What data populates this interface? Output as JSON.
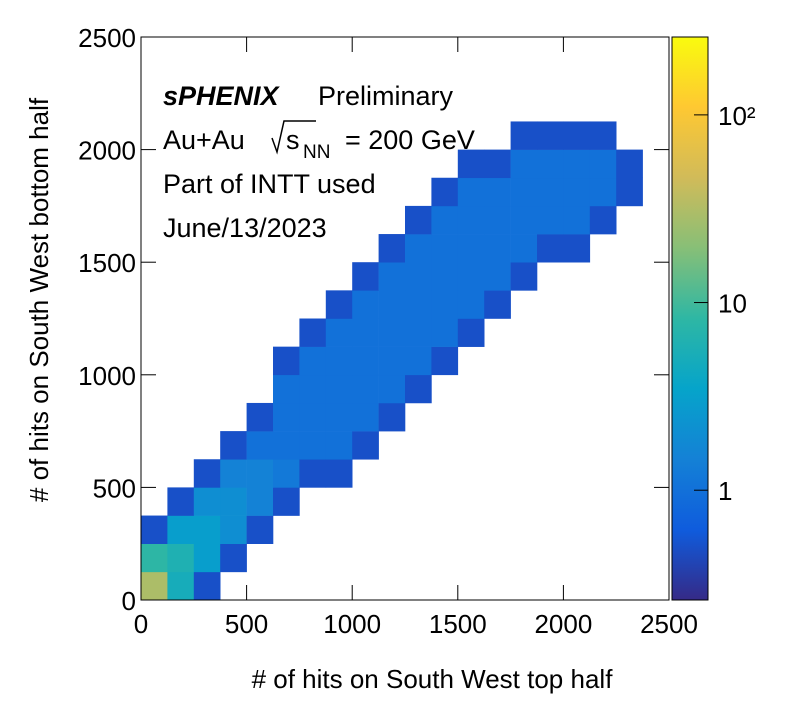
{
  "chart_data": {
    "type": "heatmap",
    "xlabel": "# of hits on South West top half",
    "ylabel": "# of hits on South West bottom half",
    "annotations": [
      "sPHENIX",
      "Preliminary",
      "Au+Au",
      "s",
      "NN",
      "= 200 GeV",
      "Part of INTT used",
      "June/13/2023"
    ],
    "xlim": [
      0,
      2500
    ],
    "ylim": [
      0,
      2500
    ],
    "xticks": [
      0,
      500,
      1000,
      1500,
      2000,
      2500
    ],
    "yticks": [
      0,
      500,
      1000,
      1500,
      2000,
      2500
    ],
    "zlim": [
      0.26,
      260
    ],
    "zlog": true,
    "zticks": [
      1,
      10,
      {
        "value": 100,
        "label": "10²"
      }
    ],
    "colormap": [
      "#352a87",
      "#0f5cdd",
      "#1481d6",
      "#06a4ca",
      "#2eb7a4",
      "#87bf77",
      "#d1bb59",
      "#fec832",
      "#f9fb0e"
    ],
    "xbins": [
      0,
      125,
      250,
      375,
      500,
      625,
      750,
      875,
      1000,
      1125,
      1250,
      1375,
      1500,
      1625,
      1750,
      1875,
      2000,
      2125,
      2250,
      2375,
      2500
    ],
    "ybins": [
      0,
      125,
      250,
      375,
      500,
      625,
      750,
      875,
      1000,
      1125,
      1250,
      1375,
      1500,
      1625,
      1750,
      1875,
      2000,
      2125,
      2250,
      2375,
      2500
    ],
    "z": [
      [
        30,
        5,
        0.5,
        null,
        null,
        null,
        null,
        null,
        null,
        null,
        null,
        null,
        null,
        null,
        null,
        null,
        null,
        null,
        null,
        null
      ],
      [
        8,
        6,
        3,
        0.5,
        null,
        null,
        null,
        null,
        null,
        null,
        null,
        null,
        null,
        null,
        null,
        null,
        null,
        null,
        null,
        null
      ],
      [
        0.5,
        3,
        3,
        2,
        0.5,
        null,
        null,
        null,
        null,
        null,
        null,
        null,
        null,
        null,
        null,
        null,
        null,
        null,
        null,
        null
      ],
      [
        null,
        0.5,
        2,
        2,
        1.5,
        0.5,
        null,
        null,
        null,
        null,
        null,
        null,
        null,
        null,
        null,
        null,
        null,
        null,
        null,
        null
      ],
      [
        null,
        null,
        0.5,
        1.5,
        1.5,
        1.2,
        0.5,
        0.5,
        null,
        null,
        null,
        null,
        null,
        null,
        null,
        null,
        null,
        null,
        null,
        null
      ],
      [
        null,
        null,
        null,
        0.5,
        1,
        1,
        1,
        1,
        0.5,
        null,
        null,
        null,
        null,
        null,
        null,
        null,
        null,
        null,
        null,
        null
      ],
      [
        null,
        null,
        null,
        null,
        0.5,
        1,
        1,
        1,
        1,
        0.5,
        null,
        null,
        null,
        null,
        null,
        null,
        null,
        null,
        null,
        null
      ],
      [
        null,
        null,
        null,
        null,
        null,
        1,
        1,
        1,
        1,
        1,
        0.5,
        null,
        null,
        null,
        null,
        null,
        null,
        null,
        null,
        null
      ],
      [
        null,
        null,
        null,
        null,
        null,
        0.5,
        1,
        1,
        1,
        1,
        1,
        0.5,
        null,
        null,
        null,
        null,
        null,
        null,
        null,
        null
      ],
      [
        null,
        null,
        null,
        null,
        null,
        null,
        0.5,
        1,
        1,
        1,
        1,
        1,
        0.5,
        null,
        null,
        null,
        null,
        null,
        null,
        null
      ],
      [
        null,
        null,
        null,
        null,
        null,
        null,
        null,
        0.5,
        1,
        1,
        1,
        1,
        1,
        0.5,
        null,
        null,
        null,
        null,
        null,
        null
      ],
      [
        null,
        null,
        null,
        null,
        null,
        null,
        null,
        null,
        0.5,
        1,
        1,
        1,
        1,
        1,
        0.5,
        null,
        null,
        null,
        null,
        null
      ],
      [
        null,
        null,
        null,
        null,
        null,
        null,
        null,
        null,
        null,
        0.5,
        1,
        1,
        1,
        1,
        1,
        0.5,
        0.5,
        null,
        null,
        null
      ],
      [
        null,
        null,
        null,
        null,
        null,
        null,
        null,
        null,
        null,
        null,
        0.5,
        1,
        1,
        1,
        1,
        1,
        1,
        0.5,
        null,
        null
      ],
      [
        null,
        null,
        null,
        null,
        null,
        null,
        null,
        null,
        null,
        null,
        null,
        0.5,
        1,
        1,
        1,
        1,
        1,
        1,
        0.5,
        null
      ],
      [
        null,
        null,
        null,
        null,
        null,
        null,
        null,
        null,
        null,
        null,
        null,
        null,
        0.5,
        0.5,
        1,
        1,
        1,
        1,
        0.5,
        null
      ],
      [
        null,
        null,
        null,
        null,
        null,
        null,
        null,
        null,
        null,
        null,
        null,
        null,
        null,
        null,
        0.5,
        0.5,
        0.5,
        0.5,
        null,
        null
      ],
      [
        null,
        null,
        null,
        null,
        null,
        null,
        null,
        null,
        null,
        null,
        null,
        null,
        null,
        null,
        null,
        null,
        null,
        null,
        null,
        null
      ],
      [
        null,
        null,
        null,
        null,
        null,
        null,
        null,
        null,
        null,
        null,
        null,
        null,
        null,
        null,
        null,
        null,
        null,
        null,
        null,
        null
      ],
      [
        null,
        null,
        null,
        null,
        null,
        null,
        null,
        null,
        null,
        null,
        null,
        null,
        null,
        null,
        null,
        null,
        null,
        null,
        null,
        null
      ]
    ]
  }
}
